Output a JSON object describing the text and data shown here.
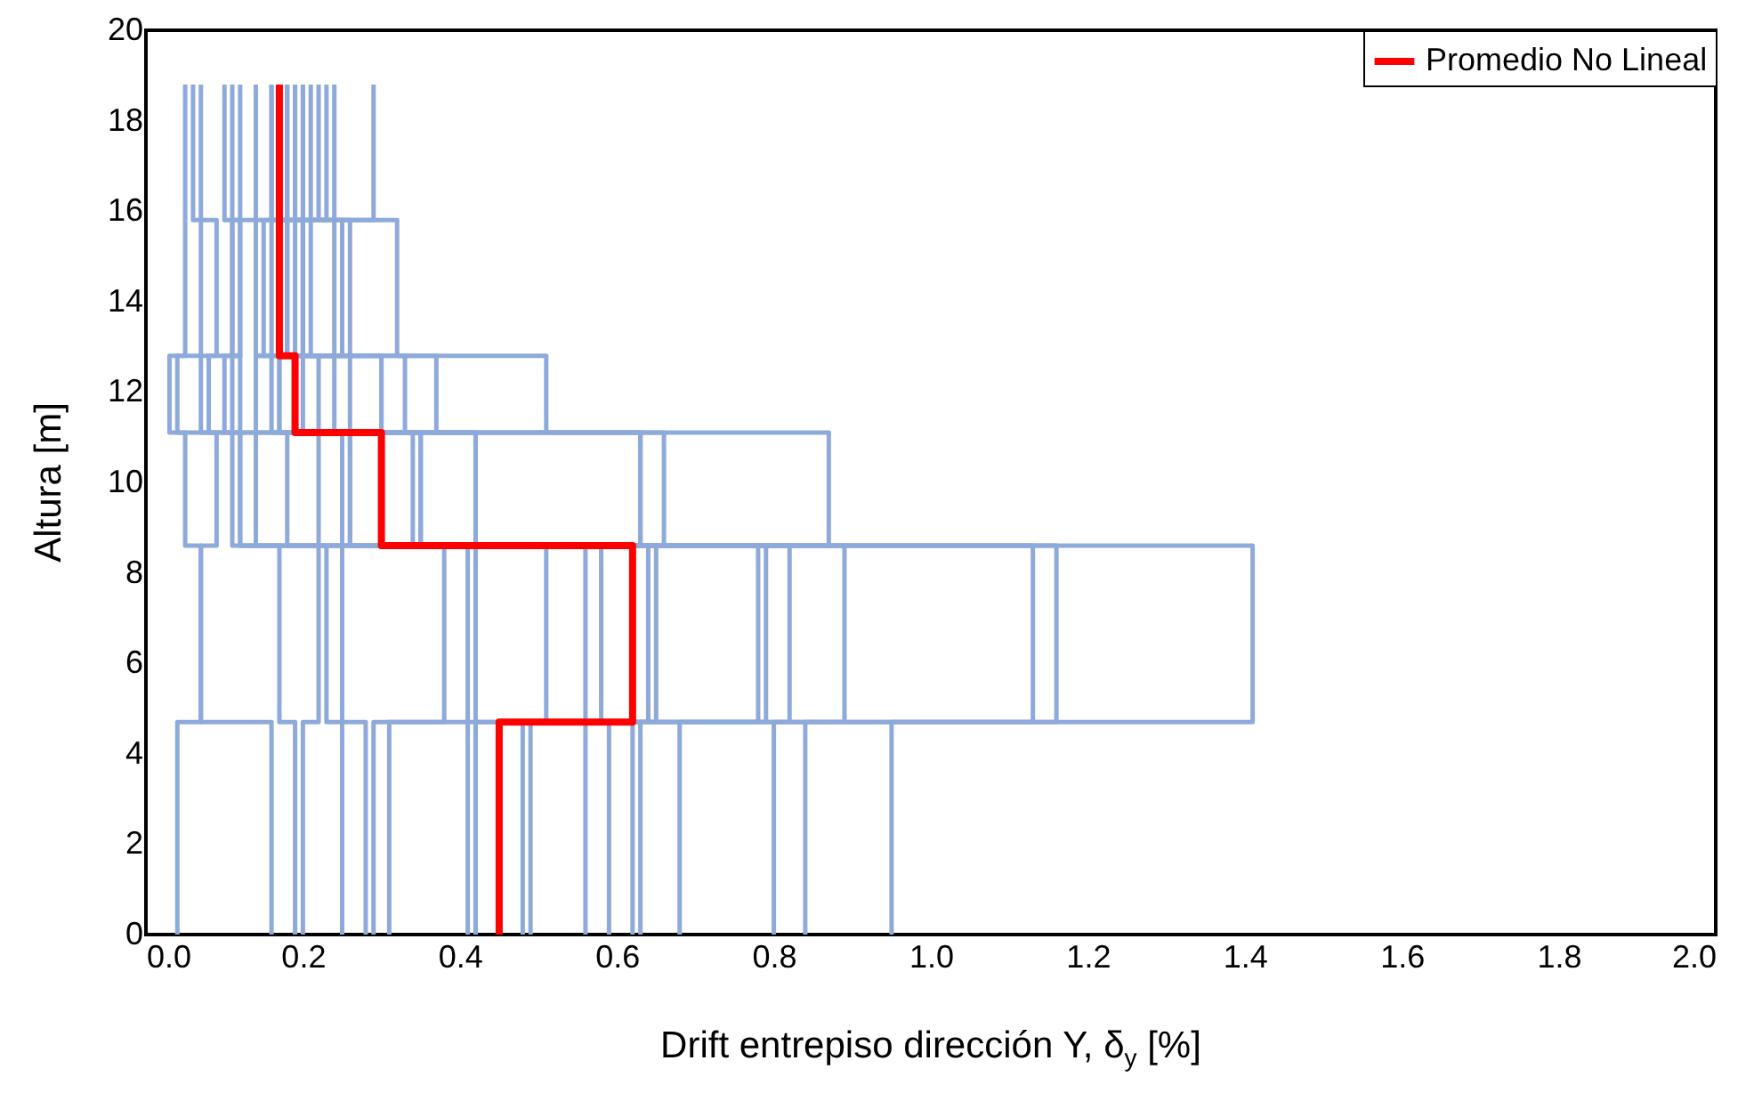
{
  "chart_data": {
    "type": "line",
    "xlabel": "Drift entrepiso dirección Y, δ$_{y}$ [%]",
    "ylabel": "Altura [m]",
    "xlim": [
      0,
      2
    ],
    "xticks": [
      {
        "value": 0,
        "label": "0.0"
      },
      {
        "value": 0.2,
        "label": "0.2"
      },
      {
        "value": 0.4,
        "label": "0.4"
      },
      {
        "value": 0.6,
        "label": "0.6"
      },
      {
        "value": 0.8,
        "label": "0.8"
      },
      {
        "value": 1,
        "label": "1.0"
      },
      {
        "value": 1.2,
        "label": "1.2"
      },
      {
        "value": 1.4,
        "label": "1.4"
      },
      {
        "value": 1.6,
        "label": "1.6"
      },
      {
        "value": 1.8,
        "label": "1.8"
      },
      {
        "value": 2,
        "label": "2.0"
      }
    ],
    "ylim": [
      0,
      20
    ],
    "yticks": [
      0,
      2,
      4,
      6,
      8,
      10,
      12,
      14,
      16,
      18,
      20
    ],
    "grid": false,
    "legend": "top right",
    "line_style": "solid",
    "marker": "none",
    "series": [
      {
        "color": "#8eaadb",
        "x": [
          0.04,
          0.04,
          0.07,
          0.07,
          0.05,
          0.05,
          0.03,
          0.03,
          0.05,
          0.05,
          0.05,
          0.05
        ],
        "values": [
          0,
          4.7,
          4.7,
          8.6,
          8.6,
          11.1,
          11.1,
          12.8,
          12.8,
          15.8,
          15.8,
          18.8
        ]
      },
      {
        "color": "#8eaadb",
        "x": [
          0.16,
          0.16,
          0.07,
          0.07,
          0.09,
          0.09,
          0.04,
          0.04,
          0.07,
          0.07,
          0.07,
          0.07
        ],
        "values": [
          0,
          4.7,
          4.7,
          8.6,
          8.6,
          11.1,
          11.1,
          12.8,
          12.8,
          15.8,
          15.8,
          18.8
        ]
      },
      {
        "color": "#8eaadb",
        "x": [
          0.19,
          0.19,
          0.17,
          0.17,
          0.11,
          0.11,
          0.07,
          0.07,
          0.09,
          0.09,
          0.06,
          0.06
        ],
        "values": [
          0,
          4.7,
          4.7,
          8.6,
          8.6,
          11.1,
          11.1,
          12.8,
          12.8,
          15.8,
          15.8,
          18.8
        ]
      },
      {
        "color": "#8eaadb",
        "x": [
          0.2,
          0.2,
          0.22,
          0.22,
          0.12,
          0.12,
          0.08,
          0.08,
          0.11,
          0.11,
          0.1,
          0.1
        ],
        "values": [
          0,
          4.7,
          4.7,
          8.6,
          8.6,
          11.1,
          11.1,
          12.8,
          12.8,
          15.8,
          15.8,
          18.8
        ]
      },
      {
        "color": "#8eaadb",
        "x": [
          0.25,
          0.25,
          0.23,
          0.23,
          0.12,
          0.12,
          0.1,
          0.1,
          0.12,
          0.12,
          0.11,
          0.11
        ],
        "values": [
          0,
          4.7,
          4.7,
          8.6,
          8.6,
          11.1,
          11.1,
          12.8,
          12.8,
          15.8,
          15.8,
          18.8
        ]
      },
      {
        "color": "#8eaadb",
        "x": [
          0.28,
          0.28,
          0.25,
          0.25,
          0.14,
          0.14,
          0.11,
          0.11,
          0.12,
          0.12,
          0.12,
          0.12
        ],
        "values": [
          0,
          4.7,
          4.7,
          8.6,
          8.6,
          11.1,
          11.1,
          12.8,
          12.8,
          15.8,
          15.8,
          18.8
        ]
      },
      {
        "color": "#8eaadb",
        "x": [
          0.29,
          0.29,
          0.38,
          0.38,
          0.18,
          0.18,
          0.12,
          0.12,
          0.11,
          0.11,
          0.14,
          0.14
        ],
        "values": [
          0,
          4.7,
          4.7,
          8.6,
          8.6,
          11.1,
          11.1,
          12.8,
          12.8,
          15.8,
          15.8,
          18.8
        ]
      },
      {
        "color": "#8eaadb",
        "x": [
          0.31,
          0.31,
          0.41,
          0.41,
          0.22,
          0.22,
          0.16,
          0.16,
          0.16,
          0.16,
          0.16,
          0.16
        ],
        "values": [
          0,
          4.7,
          4.7,
          8.6,
          8.6,
          11.1,
          11.1,
          12.8,
          12.8,
          15.8,
          15.8,
          18.8
        ]
      },
      {
        "color": "#8eaadb",
        "x": [
          0.41,
          0.41,
          0.42,
          0.42,
          0.25,
          0.25,
          0.17,
          0.17,
          0.18,
          0.18,
          0.17,
          0.17
        ],
        "values": [
          0,
          4.7,
          4.7,
          8.6,
          8.6,
          11.1,
          11.1,
          12.8,
          12.8,
          15.8,
          15.8,
          18.8
        ]
      },
      {
        "color": "#8eaadb",
        "x": [
          0.42,
          0.42,
          0.51,
          0.51,
          0.26,
          0.26,
          0.19,
          0.19,
          0.18,
          0.18,
          0.18,
          0.18
        ],
        "values": [
          0,
          4.7,
          4.7,
          8.6,
          8.6,
          11.1,
          11.1,
          12.8,
          12.8,
          15.8,
          15.8,
          18.8
        ]
      },
      {
        "color": "#8eaadb",
        "x": [
          0.42,
          0.42,
          0.56,
          0.56,
          0.34,
          0.34,
          0.22,
          0.22,
          0.19,
          0.19,
          0.19,
          0.19
        ],
        "values": [
          0,
          4.7,
          4.7,
          8.6,
          8.6,
          11.1,
          11.1,
          12.8,
          12.8,
          15.8,
          15.8,
          18.8
        ]
      },
      {
        "color": "#8eaadb",
        "x": [
          0.48,
          0.48,
          0.58,
          0.58,
          0.35,
          0.35,
          0.24,
          0.24,
          0.2,
          0.2,
          0.19,
          0.19
        ],
        "values": [
          0,
          4.7,
          4.7,
          8.6,
          8.6,
          11.1,
          11.1,
          12.8,
          12.8,
          15.8,
          15.8,
          18.8
        ]
      },
      {
        "color": "#8eaadb",
        "x": [
          0.49,
          0.49,
          0.64,
          0.64,
          0.42,
          0.42,
          0.26,
          0.26,
          0.21,
          0.21,
          0.2,
          0.2
        ],
        "values": [
          0,
          4.7,
          4.7,
          8.6,
          8.6,
          11.1,
          11.1,
          12.8,
          12.8,
          15.8,
          15.8,
          18.8
        ]
      },
      {
        "color": "#8eaadb",
        "x": [
          0.56,
          0.56,
          0.65,
          0.65,
          0.63,
          0.63,
          0.33,
          0.33,
          0.24,
          0.24,
          0.21,
          0.21
        ],
        "values": [
          0,
          4.7,
          4.7,
          8.6,
          8.6,
          11.1,
          11.1,
          12.8,
          12.8,
          15.8,
          15.8,
          18.8
        ]
      },
      {
        "color": "#8eaadb",
        "x": [
          0.59,
          0.59,
          0.78,
          0.78,
          0.66,
          0.66,
          0.37,
          0.37,
          0.26,
          0.26,
          0.22,
          0.22
        ],
        "values": [
          0,
          4.7,
          4.7,
          8.6,
          8.6,
          11.1,
          11.1,
          12.8,
          12.8,
          15.8,
          15.8,
          18.8
        ]
      },
      {
        "color": "#8eaadb",
        "x": [
          0.62,
          0.62,
          0.79,
          0.79,
          0.87,
          0.87,
          0.51,
          0.51,
          0.32,
          0.32,
          0.24,
          0.24
        ],
        "values": [
          0,
          4.7,
          4.7,
          8.6,
          8.6,
          11.1,
          11.1,
          12.8,
          12.8,
          15.8,
          15.8,
          18.8
        ]
      },
      {
        "color": "#8eaadb",
        "x": [
          0.63,
          0.63,
          0.82,
          0.82,
          0.26,
          0.26,
          0.2,
          0.2,
          0.14,
          0.14,
          0.29,
          0.29
        ],
        "values": [
          0,
          4.7,
          4.7,
          8.6,
          8.6,
          11.1,
          11.1,
          12.8,
          12.8,
          15.8,
          15.8,
          18.8
        ]
      },
      {
        "color": "#8eaadb",
        "x": [
          0.68,
          0.68,
          0.89,
          0.89,
          0.35,
          0.35,
          0.17,
          0.17,
          0.15,
          0.15,
          0.23,
          0.23
        ],
        "values": [
          0,
          4.7,
          4.7,
          8.6,
          8.6,
          11.1,
          11.1,
          12.8,
          12.8,
          15.8,
          15.8,
          18.8
        ]
      },
      {
        "color": "#8eaadb",
        "x": [
          0.8,
          0.8,
          1.13,
          1.13,
          0.42,
          0.42,
          0.14,
          0.14,
          0.25,
          0.25,
          0.16,
          0.16
        ],
        "values": [
          0,
          4.7,
          4.7,
          8.6,
          8.6,
          11.1,
          11.1,
          12.8,
          12.8,
          15.8,
          15.8,
          18.8
        ]
      },
      {
        "color": "#8eaadb",
        "x": [
          0.84,
          0.84,
          1.16,
          1.16,
          0.35,
          0.35,
          0.3,
          0.3,
          0.2,
          0.2,
          0.2,
          0.2
        ],
        "values": [
          0,
          4.7,
          4.7,
          8.6,
          8.6,
          11.1,
          11.1,
          12.8,
          12.8,
          15.8,
          15.8,
          18.8
        ]
      },
      {
        "color": "#8eaadb",
        "x": [
          0.95,
          0.95,
          1.41,
          1.41,
          0.63,
          0.63,
          0.3,
          0.3,
          0.2,
          0.2,
          0.18,
          0.18
        ],
        "values": [
          0,
          4.7,
          4.7,
          8.6,
          8.6,
          11.1,
          11.1,
          12.8,
          12.8,
          15.8,
          15.8,
          18.8
        ]
      },
      {
        "name": "Promedio No Lineal",
        "color": "#ff0000",
        "x": [
          0.45,
          0.45,
          0.62,
          0.62,
          0.3,
          0.3,
          0.19,
          0.19,
          0.17,
          0.17,
          0.17,
          0.17
        ],
        "values": [
          0,
          4.7,
          4.7,
          8.6,
          8.6,
          11.1,
          11.1,
          12.8,
          12.8,
          15.8,
          15.8,
          18.8
        ]
      }
    ]
  }
}
